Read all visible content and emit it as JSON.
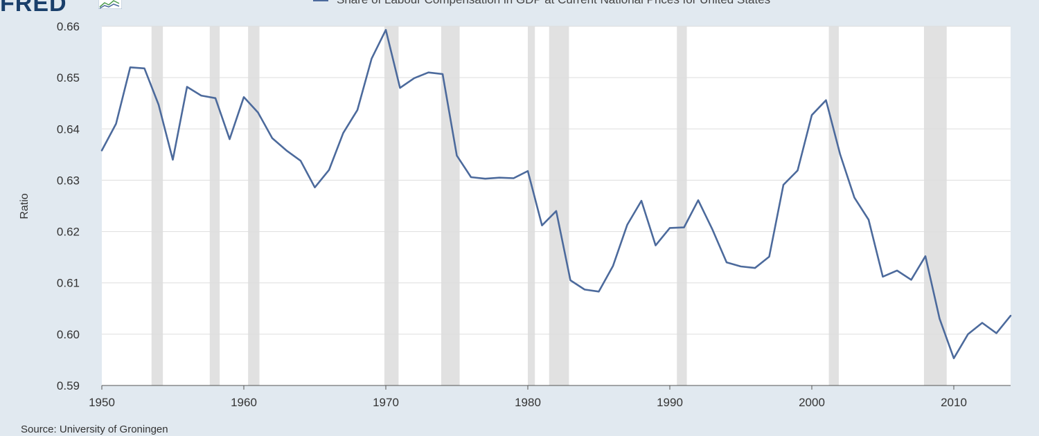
{
  "header": {
    "logo_text": "FRED",
    "legend_label": "Share of Labour Compensation in GDP at Current National Prices for United States"
  },
  "footer": {
    "source": "Source: University of Groningen"
  },
  "colors": {
    "background": "#e1e9f0",
    "plot_background": "#ffffff",
    "line": "#4c6a9c",
    "recession": "#e1e1e1",
    "grid": "#dddddd",
    "logo": "#1a3f6b"
  },
  "chart_data": {
    "type": "line",
    "title": "",
    "xlabel": "",
    "ylabel": "Ratio",
    "xlim": [
      1950,
      2014
    ],
    "ylim": [
      0.59,
      0.66
    ],
    "grid": true,
    "legend_position": "top",
    "x_ticks": [
      1950,
      1960,
      1970,
      1980,
      1990,
      2000,
      2010
    ],
    "x_tick_labels": [
      "1950",
      "1960",
      "1970",
      "1980",
      "1990",
      "2000",
      "2010"
    ],
    "y_ticks": [
      0.59,
      0.6,
      0.61,
      0.62,
      0.63,
      0.64,
      0.65,
      0.66
    ],
    "y_tick_labels": [
      "0.59",
      "0.60",
      "0.61",
      "0.62",
      "0.63",
      "0.64",
      "0.65",
      "0.66"
    ],
    "recessions": [
      [
        1953.5,
        1954.3
      ],
      [
        1957.6,
        1958.3
      ],
      [
        1960.3,
        1961.1
      ],
      [
        1969.9,
        1970.9
      ],
      [
        1973.9,
        1975.2
      ],
      [
        1980.0,
        1980.5
      ],
      [
        1981.5,
        1982.9
      ],
      [
        1990.5,
        1991.2
      ],
      [
        2001.2,
        2001.9
      ],
      [
        2007.9,
        2009.5
      ]
    ],
    "series": [
      {
        "name": "Share of Labour Compensation in GDP at Current National Prices for United States",
        "x": [
          1950,
          1951,
          1952,
          1953,
          1954,
          1955,
          1956,
          1957,
          1958,
          1959,
          1960,
          1961,
          1962,
          1963,
          1964,
          1965,
          1966,
          1967,
          1968,
          1969,
          1970,
          1971,
          1972,
          1973,
          1974,
          1975,
          1976,
          1977,
          1978,
          1979,
          1980,
          1981,
          1982,
          1983,
          1984,
          1985,
          1986,
          1987,
          1988,
          1989,
          1990,
          1991,
          1992,
          1993,
          1994,
          1995,
          1996,
          1997,
          1998,
          1999,
          2000,
          2001,
          2002,
          2003,
          2004,
          2005,
          2006,
          2007,
          2008,
          2009,
          2010,
          2011,
          2012,
          2013,
          2014
        ],
        "values": [
          0.6358,
          0.641,
          0.652,
          0.6518,
          0.6447,
          0.634,
          0.6482,
          0.6465,
          0.646,
          0.638,
          0.6462,
          0.6432,
          0.6382,
          0.6358,
          0.6338,
          0.6286,
          0.632,
          0.6392,
          0.6437,
          0.6537,
          0.6593,
          0.648,
          0.6499,
          0.651,
          0.6507,
          0.6348,
          0.6306,
          0.6303,
          0.6305,
          0.6304,
          0.6318,
          0.6212,
          0.624,
          0.6105,
          0.6087,
          0.6083,
          0.6133,
          0.6213,
          0.626,
          0.6173,
          0.6207,
          0.6208,
          0.6261,
          0.6204,
          0.614,
          0.6132,
          0.6129,
          0.6151,
          0.6291,
          0.6319,
          0.6427,
          0.6456,
          0.635,
          0.6266,
          0.6223,
          0.6112,
          0.6124,
          0.6106,
          0.6152,
          0.603,
          0.5953,
          0.6,
          0.6022,
          0.6002,
          0.6036
        ]
      }
    ]
  }
}
